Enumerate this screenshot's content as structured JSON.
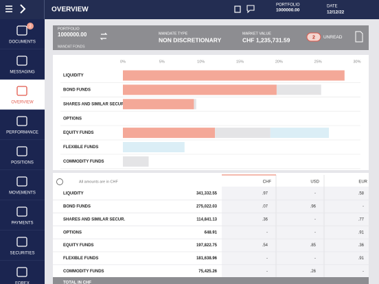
{
  "topbar": {
    "title": "OVERVIEW",
    "portfolio_label": "PORTFOLIO",
    "portfolio_value": "1000000.00",
    "date_label": "DATE",
    "date_value": "12/12/22"
  },
  "sidebar": {
    "selected": 2,
    "items": [
      {
        "label": "DOCUMENTS",
        "badge": "2"
      },
      {
        "label": "MESSAGING"
      },
      {
        "label": "OVERVIEW"
      },
      {
        "label": "PERFORMANCE"
      },
      {
        "label": "POSITIONS"
      },
      {
        "label": "MOVEMENTS"
      },
      {
        "label": "PAYMENTS"
      },
      {
        "label": "SECURITIES"
      },
      {
        "label": "FOREX"
      }
    ]
  },
  "summary": {
    "portfolio_label": "PORTFOLIO",
    "portfolio_value": "1000000.00",
    "portfolio_name": "MANDAT FONDS",
    "mandate_label": "MANDATE TYPE",
    "mandate_value": "NON DISCRETIONARY",
    "market_label": "MARKET VALUE",
    "market_value": "CHF 1,235,731.59",
    "unread_count": "2",
    "unread_label": "UNREAD"
  },
  "chart_data": {
    "type": "bar",
    "orientation": "horizontal",
    "stacked": true,
    "categories": [
      "LIQUIDITY",
      "BOND FUNDS",
      "SHARES AND SIMILAR SECUR.",
      "OPTIONS",
      "EQUITY FUNDS",
      "FLEXIBLE FUNDS",
      "COMMODITY FUNDS"
    ],
    "series": [
      {
        "color": "#f4a898",
        "values": [
          28.4,
          19.7,
          9.1,
          0,
          11.8,
          0,
          0
        ]
      },
      {
        "color": "#e4e4e6",
        "values": [
          0,
          5.7,
          0.3,
          0,
          7.1,
          0,
          3.3
        ]
      },
      {
        "color": "#dbeef6",
        "values": [
          0,
          0,
          0,
          0,
          7.5,
          7.9,
          0
        ]
      }
    ],
    "xlim": [
      0,
      30
    ],
    "xticks": [
      {
        "value": 0,
        "label": "0%"
      },
      {
        "value": 5,
        "label": "5%"
      },
      {
        "value": 10,
        "label": "10%"
      },
      {
        "value": 15,
        "label": "15%"
      },
      {
        "value": 20,
        "label": "20%"
      },
      {
        "value": 25,
        "label": "25%"
      },
      {
        "value": 30,
        "label": "30%"
      }
    ]
  },
  "table": {
    "note": "All amounts are in CHF",
    "columns": [
      "CHF",
      "USD",
      "EUR"
    ],
    "rows": [
      [
        "LIQUIDITY",
        "341,332.55",
        ".97",
        "-",
        ".58"
      ],
      [
        "BOND FUNDS",
        "275,022.03",
        ".07",
        ".96",
        "-"
      ],
      [
        "SHARES AND SIMILAR SECUR.",
        "114,841.13",
        ".36",
        "-",
        ".77"
      ],
      [
        "OPTIONS",
        "648.91",
        "-",
        "-",
        ".91"
      ],
      [
        "EQUITY FUNDS",
        "197,822.75",
        ".54",
        ".85",
        ".36"
      ],
      [
        "FLEXIBLE FUNDS",
        "181,638.96",
        "-",
        "-",
        ".91"
      ],
      [
        "COMMODITY FUNDS",
        "75,425.26",
        "-",
        ".26",
        "-"
      ]
    ],
    "total_label": "TOTAL IN CHF"
  }
}
